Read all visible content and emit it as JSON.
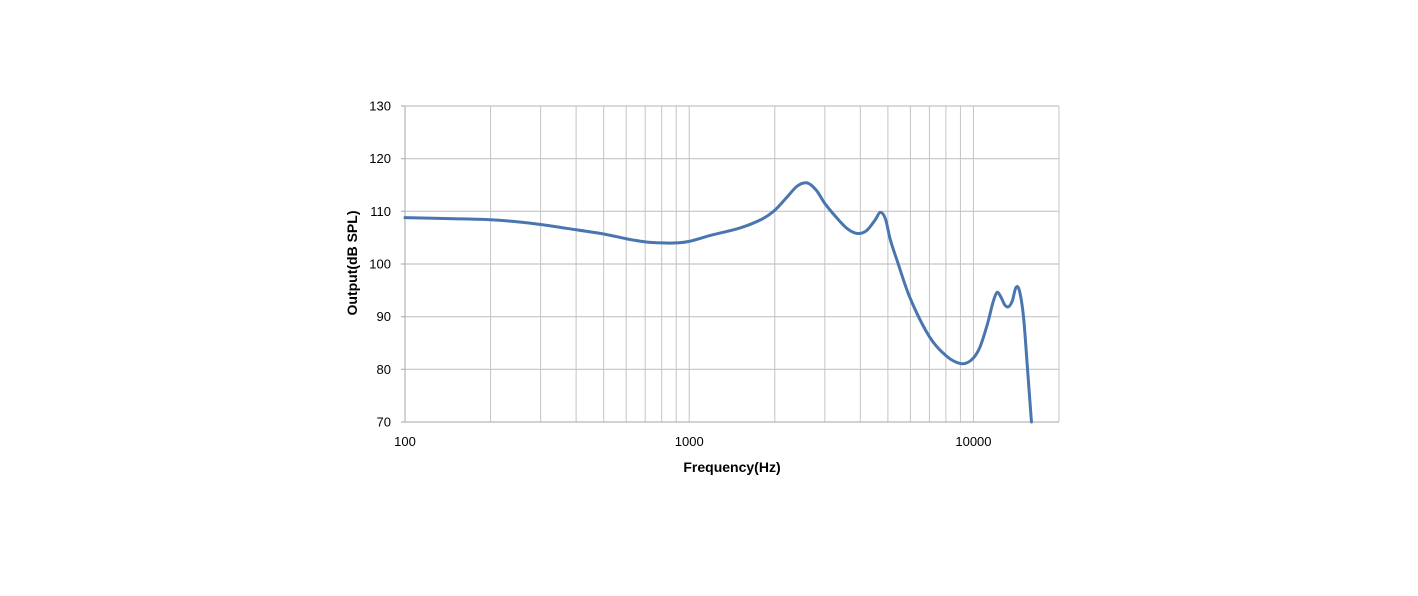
{
  "chart_data": {
    "type": "line",
    "title": "",
    "xlabel": "Frequency(Hz)",
    "ylabel": "Output(dB SPL)",
    "x_scale": "log",
    "xlim": [
      100,
      20000
    ],
    "ylim": [
      70,
      130
    ],
    "x_tick_labels": [
      "100",
      "1000",
      "10000"
    ],
    "x_tick_values": [
      100,
      1000,
      10000
    ],
    "y_tick_labels": [
      "70",
      "80",
      "90",
      "100",
      "110",
      "120",
      "130"
    ],
    "y_tick_values": [
      70,
      80,
      90,
      100,
      110,
      120,
      130
    ],
    "grid": true,
    "legend": "none",
    "colors": {
      "line": "#4a76b0",
      "grid": "#c4c4c4",
      "axis": "#a6a6a6"
    },
    "series": [
      {
        "x": [
          100,
          150,
          200,
          250,
          300,
          400,
          500,
          600,
          700,
          800,
          900,
          1000,
          1200,
          1500,
          1800,
          2000,
          2200,
          2400,
          2600,
          2800,
          3000,
          3300,
          3600,
          3900,
          4200,
          4500,
          4700,
          4900,
          5100,
          5400,
          6000,
          7000,
          8000,
          9000,
          9800,
          10500,
          11200,
          11700,
          12100,
          12500,
          12900,
          13300,
          13700,
          14100,
          14500,
          15000,
          15500,
          16000
        ],
        "y": [
          108.8,
          108.6,
          108.4,
          108.0,
          107.5,
          106.5,
          105.7,
          104.8,
          104.2,
          104.0,
          104.0,
          104.3,
          105.5,
          106.8,
          108.5,
          110.2,
          112.6,
          114.8,
          115.4,
          114.0,
          111.5,
          108.8,
          106.7,
          105.8,
          106.3,
          108.3,
          109.8,
          108.6,
          104.6,
          100.5,
          93.4,
          86.2,
          82.6,
          81.1,
          81.7,
          84.0,
          88.6,
          92.6,
          94.6,
          93.7,
          92.2,
          91.9,
          93.0,
          95.5,
          95.0,
          90.0,
          80.0,
          70.0
        ]
      }
    ]
  }
}
